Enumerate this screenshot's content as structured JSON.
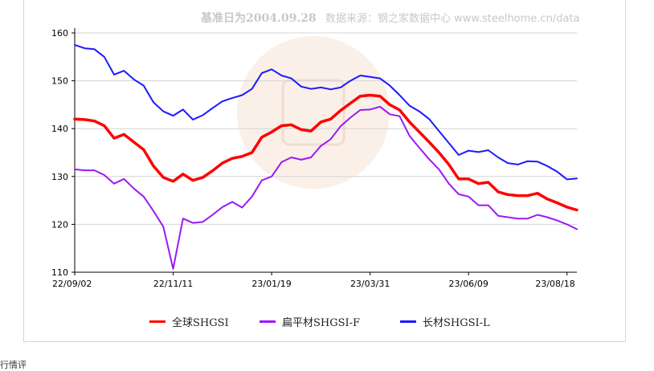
{
  "header": {
    "base_note": "基准日为2004.09.28",
    "source_note": "数据来源：钢之家数据中心 www.steelhome.cn/data"
  },
  "footer": {
    "cut_text": "行情评"
  },
  "chart_data": {
    "type": "line",
    "title": "",
    "xlabel": "",
    "ylabel": "",
    "ylim": [
      110,
      160
    ],
    "yticks": [
      110,
      120,
      130,
      140,
      150,
      160
    ],
    "xtick_labels": [
      "22/09/02",
      "22/11/11",
      "23/01/19",
      "23/03/31",
      "23/06/09",
      "23/08/18"
    ],
    "xtick_positions": [
      0,
      10,
      20,
      30,
      40,
      50
    ],
    "grid": true,
    "legend_position": "bottom",
    "series": [
      {
        "name": "全球SHGSI",
        "color": "#ff0000",
        "width": 3.5,
        "values": [
          142,
          141.9,
          141.6,
          140.6,
          138,
          138.8,
          137.2,
          135.6,
          132.2,
          129.8,
          129,
          130.5,
          129.2,
          129.8,
          131.2,
          132.8,
          133.8,
          134.2,
          135,
          138.2,
          139.3,
          140.6,
          140.8,
          139.8,
          139.5,
          141.4,
          142,
          143.8,
          145.3,
          146.8,
          147,
          146.8,
          145,
          143.9,
          141.4,
          139.3,
          137.2,
          135,
          132.5,
          129.5,
          129.5,
          128.5,
          128.8,
          126.8,
          126.2,
          126,
          126,
          126.5,
          125.3,
          124.5,
          123.6,
          123
        ]
      },
      {
        "name": "扁平材SHGSI-F",
        "color": "#9b19f5",
        "width": 2,
        "values": [
          131.5,
          131.3,
          131.3,
          130.3,
          128.5,
          129.5,
          127.5,
          125.8,
          122.8,
          119.5,
          110.7,
          121.2,
          120.3,
          120.5,
          122,
          123.6,
          124.7,
          123.5,
          125.8,
          129.2,
          130,
          133,
          134,
          133.5,
          134,
          136.4,
          137.8,
          140.5,
          142.3,
          143.9,
          144,
          144.6,
          143,
          142.6,
          138.5,
          136,
          133.6,
          131.5,
          128.5,
          126.3,
          125.8,
          124,
          124,
          121.8,
          121.5,
          121.2,
          121.2,
          122,
          121.5,
          120.8,
          120,
          119
        ]
      },
      {
        "name": "长材SHGSI-L",
        "color": "#1a1aff",
        "width": 2,
        "values": [
          157.5,
          156.8,
          156.6,
          155,
          151.3,
          152.1,
          150.3,
          149,
          145.5,
          143.6,
          142.7,
          144,
          141.9,
          142.8,
          144.3,
          145.7,
          146.4,
          147,
          148.3,
          151.6,
          152.4,
          151.1,
          150.5,
          148.8,
          148.3,
          148.6,
          148.2,
          148.6,
          150,
          151.1,
          150.8,
          150.5,
          149,
          147,
          144.8,
          143.6,
          142,
          139.5,
          137,
          134.5,
          135.4,
          135.1,
          135.5,
          134,
          132.8,
          132.5,
          133.2,
          133.1,
          132.2,
          131,
          129.4,
          129.6
        ]
      }
    ]
  }
}
